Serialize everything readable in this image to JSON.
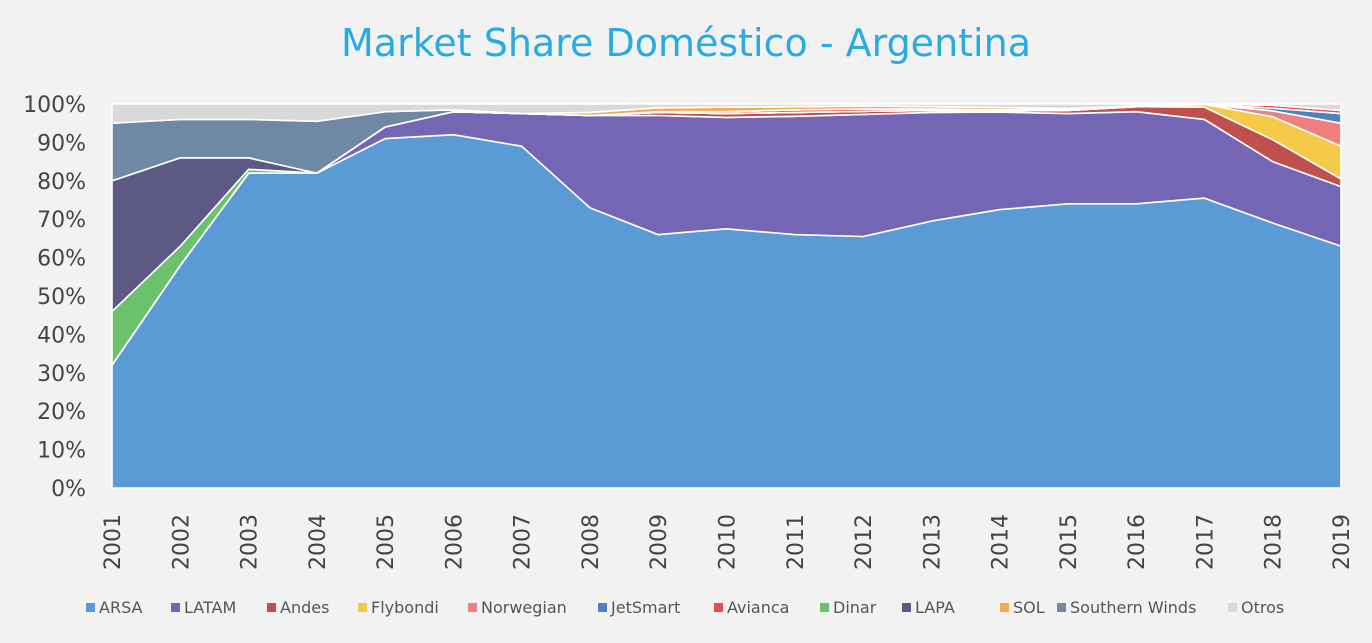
{
  "chart_data": {
    "type": "area",
    "stacked": true,
    "percent": true,
    "title": "Market Share Doméstico - Argentina",
    "xlabel": "",
    "ylabel": "",
    "ylim": [
      0,
      100
    ],
    "grid": false,
    "legend_position": "bottom",
    "x": [
      "2001",
      "2002",
      "2003",
      "2004",
      "2005",
      "2006",
      "2007",
      "2008",
      "2009",
      "2010",
      "2011",
      "2012",
      "2013",
      "2014",
      "2015",
      "2016",
      "2017",
      "2018",
      "2019"
    ],
    "y_ticks": [
      "0%",
      "10%",
      "20%",
      "30%",
      "40%",
      "50%",
      "60%",
      "70%",
      "80%",
      "90%",
      "100%"
    ],
    "series": [
      {
        "name": "ARSA",
        "color": "#5b9bd5",
        "values": [
          32,
          58,
          82,
          82,
          91,
          92,
          89,
          73,
          66,
          67.5,
          66,
          65.5,
          69.5,
          72.5,
          74,
          74,
          75.5,
          69,
          63
        ]
      },
      {
        "name": "LATAM",
        "color": "#7565b5",
        "values": [
          0,
          0,
          0,
          0,
          3,
          6,
          8.5,
          24,
          31,
          29,
          30.8,
          31.8,
          28.3,
          25.4,
          23.5,
          24,
          20.5,
          16,
          15.5
        ]
      },
      {
        "name": "Andes",
        "color": "#c0504d",
        "values": [
          0,
          0,
          0,
          0,
          0,
          0,
          0,
          0,
          0.8,
          1,
          1,
          0.8,
          0.5,
          0.3,
          0.8,
          1.3,
          3.2,
          5.7,
          2
        ]
      },
      {
        "name": "Flybondi",
        "color": "#f7c948",
        "values": [
          0,
          0,
          0,
          0,
          0,
          0,
          0,
          0,
          0,
          0,
          0,
          0,
          0,
          0,
          0,
          0,
          0.7,
          6,
          8.5
        ]
      },
      {
        "name": "Norwegian",
        "color": "#f08080",
        "values": [
          0,
          0,
          0,
          0,
          0,
          0,
          0,
          0,
          0,
          0,
          0,
          0,
          0,
          0,
          0,
          0,
          0,
          1.5,
          6
        ]
      },
      {
        "name": "JetSmart",
        "color": "#4f81bd",
        "values": [
          0,
          0,
          0,
          0,
          0,
          0,
          0,
          0,
          0,
          0,
          0,
          0,
          0,
          0,
          0,
          0,
          0,
          0.7,
          2.5
        ]
      },
      {
        "name": "Avianca",
        "color": "#e84c4c",
        "values": [
          0,
          0,
          0,
          0,
          0,
          0,
          0,
          0,
          0.2,
          0.5,
          0.7,
          0.6,
          0.4,
          0.3,
          0.2,
          0.2,
          0.1,
          0.8,
          0.8
        ]
      },
      {
        "name": "Dinar",
        "color": "#6cc26c",
        "values": [
          14,
          5,
          1,
          0,
          0,
          0,
          0,
          0,
          0,
          0,
          0,
          0,
          0,
          0,
          0,
          0,
          0,
          0,
          0
        ]
      },
      {
        "name": "LAPA",
        "color": "#5c5a82",
        "values": [
          34,
          23,
          3,
          0,
          0,
          0,
          0,
          0,
          0,
          0,
          0,
          0,
          0,
          0,
          0,
          0,
          0,
          0,
          0
        ]
      },
      {
        "name": "SOL",
        "color": "#f4a957",
        "values": [
          0,
          0,
          0,
          0,
          0,
          0,
          0,
          0.8,
          1,
          1.2,
          0.8,
          0.8,
          0.6,
          0.6,
          0.3,
          0,
          0,
          0,
          0
        ]
      },
      {
        "name": "Southern Winds",
        "color": "#6f88a3",
        "values": [
          15,
          10,
          10,
          13.5,
          4,
          0.5,
          0,
          0,
          0,
          0,
          0,
          0,
          0,
          0,
          0,
          0,
          0,
          0,
          0
        ]
      },
      {
        "name": "Otros",
        "color": "#d9d9d9",
        "values": [
          5,
          4,
          4,
          4.5,
          2,
          1.5,
          2.5,
          2.2,
          1,
          0.8,
          0.7,
          0.5,
          0.7,
          0.9,
          1.2,
          0.5,
          0,
          0.3,
          1.7
        ]
      }
    ]
  }
}
